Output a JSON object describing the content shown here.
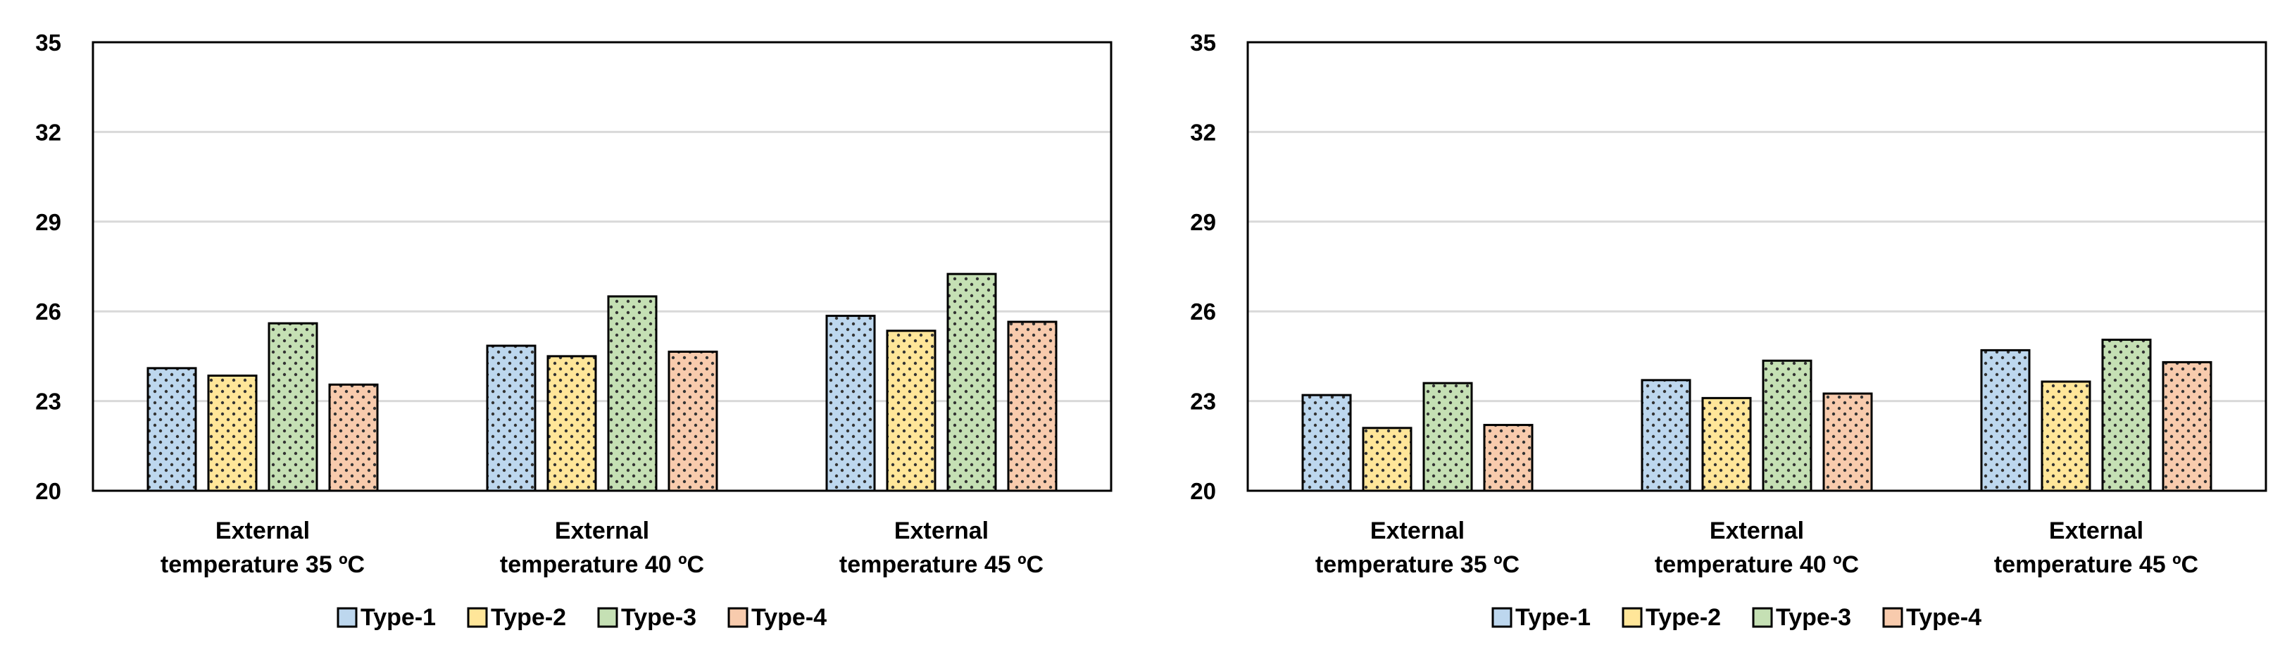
{
  "chart_data": [
    {
      "type": "bar",
      "categories": [
        [
          "External",
          "temperature 35 ºC"
        ],
        [
          "External",
          "temperature 40 ºC"
        ],
        [
          "External",
          "temperature 45 ºC"
        ]
      ],
      "ylim": [
        20,
        35
      ],
      "yticks": [
        20,
        23,
        26,
        29,
        32,
        35
      ],
      "grid": true,
      "legend_position": "bottom",
      "series": [
        {
          "name": "Type-1",
          "color": "#BDD7EE",
          "values": [
            24.1,
            24.85,
            25.85
          ]
        },
        {
          "name": "Type-2",
          "color": "#FFE699",
          "values": [
            23.85,
            24.5,
            25.35
          ]
        },
        {
          "name": "Type-3",
          "color": "#C5E0B4",
          "values": [
            25.6,
            26.5,
            27.25
          ]
        },
        {
          "name": "Type-4",
          "color": "#F8CBAD",
          "values": [
            23.55,
            24.65,
            25.65
          ]
        }
      ]
    },
    {
      "type": "bar",
      "categories": [
        [
          "External",
          "temperature 35 ºC"
        ],
        [
          "External",
          "temperature 40 ºC"
        ],
        [
          "External",
          "temperature 45 ºC"
        ]
      ],
      "ylim": [
        20,
        35
      ],
      "yticks": [
        20,
        23,
        26,
        29,
        32,
        35
      ],
      "grid": true,
      "legend_position": "bottom",
      "series": [
        {
          "name": "Type-1",
          "color": "#BDD7EE",
          "values": [
            23.2,
            23.7,
            24.7
          ]
        },
        {
          "name": "Type-2",
          "color": "#FFE699",
          "values": [
            22.1,
            23.1,
            23.65
          ]
        },
        {
          "name": "Type-3",
          "color": "#C5E0B4",
          "values": [
            23.6,
            24.35,
            25.05
          ]
        },
        {
          "name": "Type-4",
          "color": "#F8CBAD",
          "values": [
            22.2,
            23.25,
            24.3
          ]
        }
      ]
    }
  ]
}
